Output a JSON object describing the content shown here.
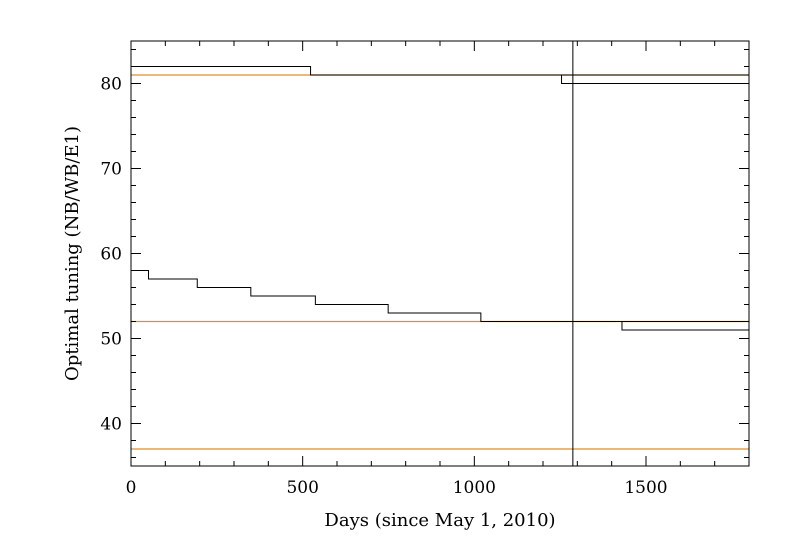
{
  "chart_data": {
    "type": "line",
    "title": "",
    "xlabel": "Days (since May 1, 2010)",
    "ylabel": "Optimal tuning (NB/WB/E1)",
    "xlim": [
      0,
      1800
    ],
    "ylim": [
      35,
      85
    ],
    "x_ticks": [
      0,
      500,
      1000,
      1500
    ],
    "y_ticks": [
      40,
      50,
      60,
      70,
      80
    ],
    "x_minor_step": 100,
    "y_minor_step": 2,
    "grid": false,
    "legend": "none",
    "series": [
      {
        "style": "step",
        "color": "#000000",
        "points": [
          [
            0,
            82
          ],
          [
            523,
            82
          ],
          [
            523,
            81
          ],
          [
            1800,
            81
          ]
        ]
      },
      {
        "style": "step",
        "color": "#000000",
        "points": [
          [
            1254,
            81
          ],
          [
            1254,
            80
          ],
          [
            1800,
            80
          ]
        ]
      },
      {
        "style": "step",
        "color": "#000000",
        "points": [
          [
            0,
            58
          ],
          [
            51,
            58
          ],
          [
            51,
            57
          ],
          [
            193,
            57
          ],
          [
            193,
            56
          ],
          [
            349,
            56
          ],
          [
            349,
            55
          ],
          [
            537,
            55
          ],
          [
            537,
            54
          ],
          [
            749,
            54
          ],
          [
            749,
            53
          ],
          [
            1019,
            53
          ],
          [
            1019,
            52
          ],
          [
            1800,
            52
          ]
        ]
      },
      {
        "style": "step",
        "color": "#000000",
        "points": [
          [
            1430,
            52
          ],
          [
            1430,
            51
          ],
          [
            1800,
            51
          ]
        ]
      }
    ],
    "reference_lines": {
      "horizontal": [
        {
          "y": 81,
          "color": "#e08e2a"
        },
        {
          "y": 52,
          "color": "#e08e2a"
        },
        {
          "y": 37,
          "color": "#e08e2a"
        }
      ],
      "vertical": [
        {
          "x": 1287,
          "color": "#000000"
        }
      ]
    }
  }
}
